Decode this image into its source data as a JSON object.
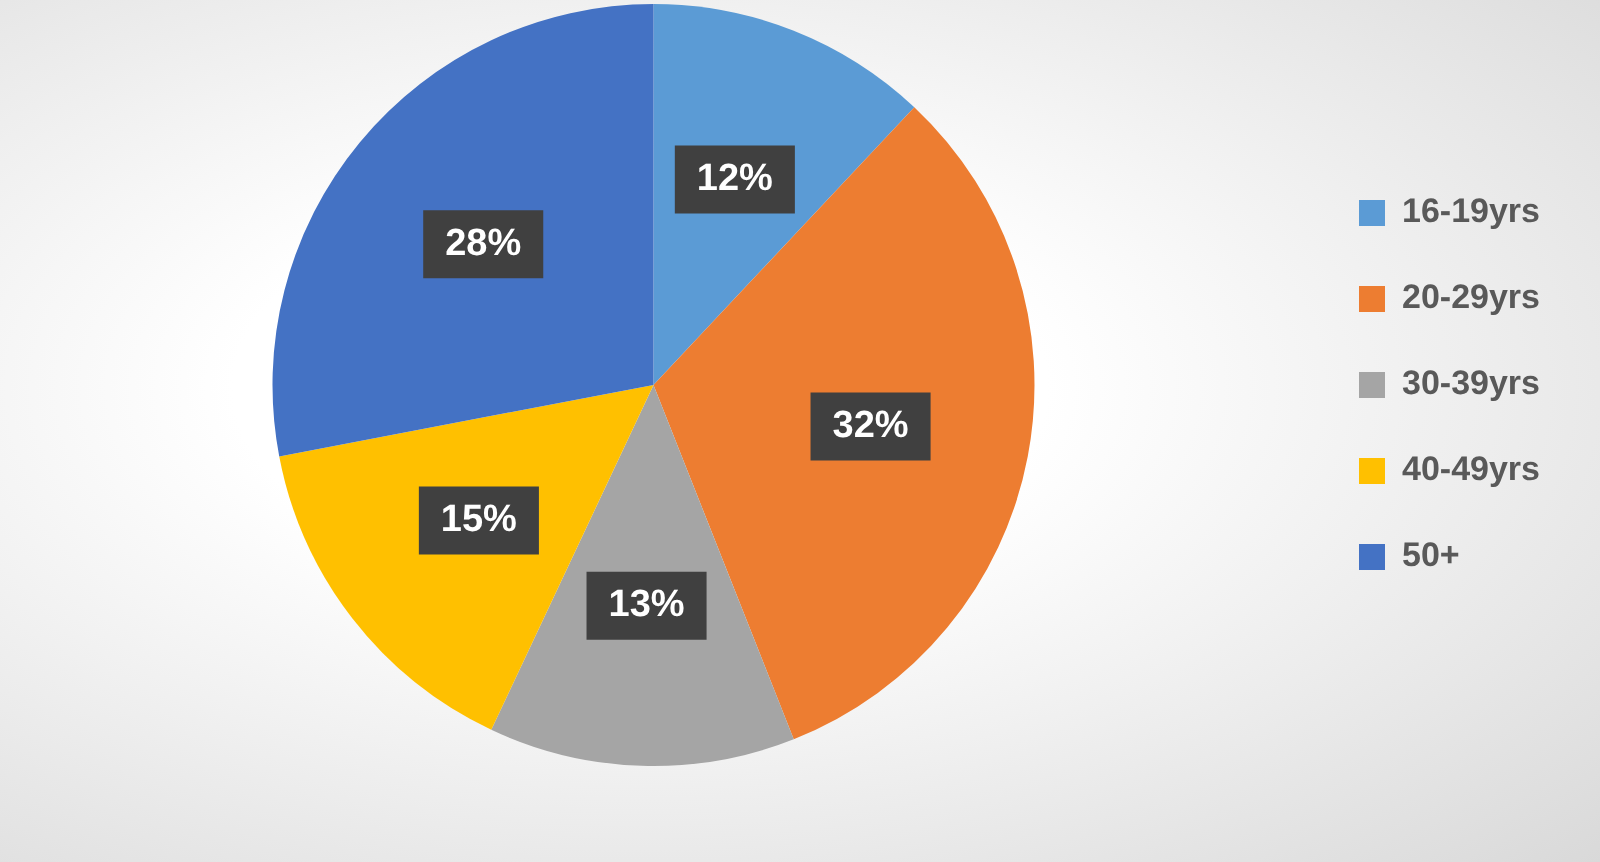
{
  "chart_data": {
    "type": "pie",
    "categories": [
      "16-19yrs",
      "20-29yrs",
      "30-39yrs",
      "40-49yrs",
      "50+"
    ],
    "values": [
      12,
      32,
      13,
      15,
      28
    ],
    "colors": [
      "#5b9bd5",
      "#ed7d31",
      "#a5a5a5",
      "#ffc000",
      "#4472c4"
    ],
    "value_labels": [
      "12%",
      "32%",
      "13%",
      "15%",
      "28%"
    ],
    "legend": "right"
  }
}
